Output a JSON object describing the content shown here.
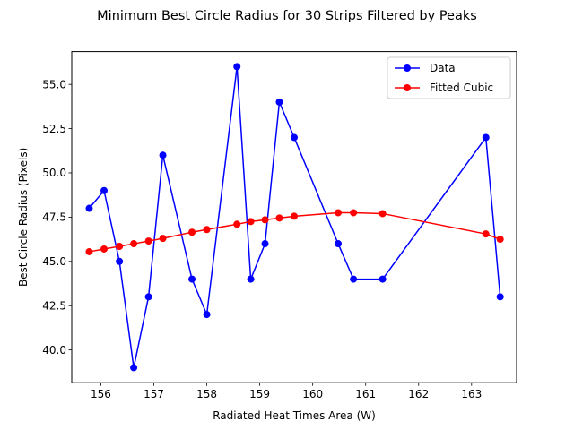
{
  "chart_data": {
    "type": "line",
    "title": "Minimum Best Circle Radius for 30 Strips Filtered by Peaks",
    "xlabel": "Radiated Heat Times Area (W)",
    "ylabel": "Best Circle Radius (Pixels)",
    "xlim": [
      155.45,
      163.85
    ],
    "ylim": [
      38.15,
      56.85
    ],
    "xticks": [
      156,
      157,
      158,
      159,
      160,
      161,
      162,
      163
    ],
    "yticks": [
      40.0,
      42.5,
      45.0,
      47.5,
      50.0,
      52.5,
      55.0
    ],
    "grid": false,
    "legend_position": "top-right",
    "series": [
      {
        "name": "Data",
        "color": "#0000ff",
        "x": [
          155.78,
          156.06,
          156.35,
          156.62,
          156.9,
          157.17,
          157.72,
          158.0,
          158.57,
          158.83,
          159.1,
          159.37,
          159.65,
          160.48,
          160.77,
          161.32,
          163.27,
          163.54
        ],
        "y": [
          48,
          49,
          45,
          39,
          43,
          51,
          44,
          42,
          56,
          44,
          46,
          54,
          52,
          46,
          44,
          44,
          52,
          43
        ]
      },
      {
        "name": "Fitted Cubic",
        "color": "#ff0000",
        "x": [
          155.78,
          156.06,
          156.35,
          156.62,
          156.9,
          157.17,
          157.72,
          158.0,
          158.57,
          158.83,
          159.1,
          159.37,
          159.65,
          160.48,
          160.77,
          161.32,
          163.27,
          163.54
        ],
        "y": [
          45.55,
          45.7,
          45.85,
          46.0,
          46.15,
          46.3,
          46.65,
          46.8,
          47.1,
          47.25,
          47.35,
          47.45,
          47.55,
          47.75,
          47.75,
          47.7,
          46.55,
          46.25
        ]
      }
    ]
  }
}
